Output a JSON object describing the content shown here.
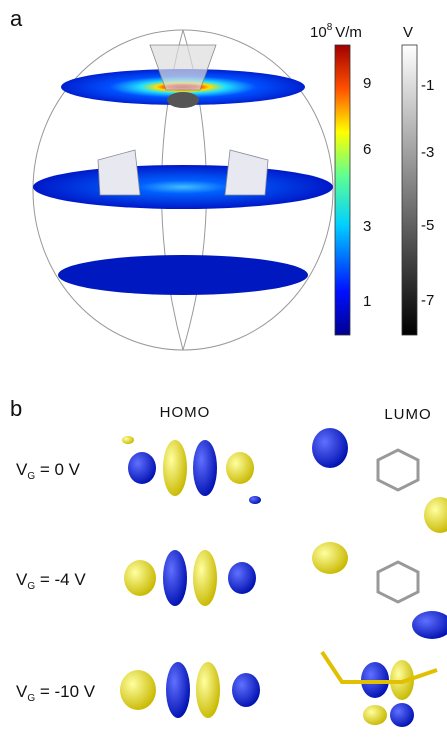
{
  "panel_a": {
    "label": "a",
    "field_colorbar": {
      "base": "10",
      "exponent": "8",
      "unit": "V/m",
      "ticks": [
        9,
        6,
        3,
        1
      ]
    },
    "potential_colorbar": {
      "unit": "V",
      "ticks": [
        -1,
        -3,
        -5,
        -7
      ]
    }
  },
  "panel_b": {
    "label": "b",
    "columns": [
      "HOMO",
      "LUMO"
    ],
    "rows": [
      {
        "symbol": "V",
        "subscript": "G",
        "text": " = 0 V"
      },
      {
        "symbol": "V",
        "subscript": "G",
        "text": " = -4 V"
      },
      {
        "symbol": "V",
        "subscript": "G",
        "text": " = -10 V"
      }
    ]
  }
}
